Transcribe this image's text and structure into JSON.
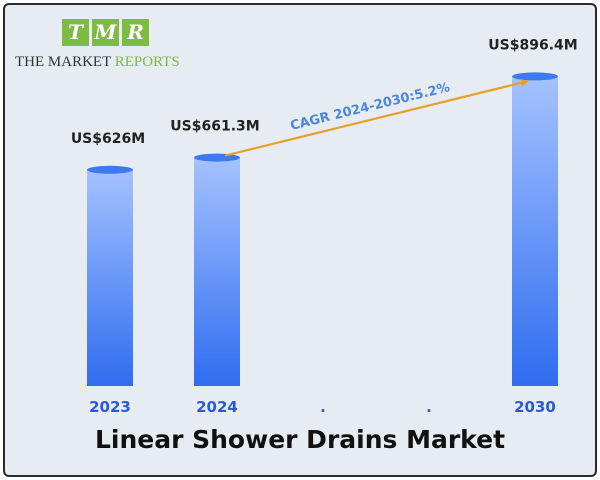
{
  "logo": {
    "letters": [
      "T",
      "M",
      "R"
    ],
    "name_part1": "THE MARKET ",
    "name_part2": "REPORTS"
  },
  "title": "Linear Shower Drains Market",
  "colors": {
    "bar_top": "#a5c2ff",
    "bar_bottom": "#2f6df0",
    "cagr_arrow": "#e8a02a",
    "cagr_text": "#4c86d8",
    "year_label": "#2a5ad6",
    "logo_green": "#7dbb43"
  },
  "chart_data": {
    "type": "bar",
    "categories": [
      "2023",
      "2024",
      ".",
      ".",
      "2030"
    ],
    "values": [
      626,
      661.3,
      null,
      null,
      896.4
    ],
    "value_labels": [
      "US$626M",
      "US$661.3M",
      "",
      "",
      "US$896.4M"
    ],
    "unit": "US$ Million",
    "annotation": "CAGR 2024-2030:5.2%",
    "title": "Linear Shower Drains Market"
  }
}
